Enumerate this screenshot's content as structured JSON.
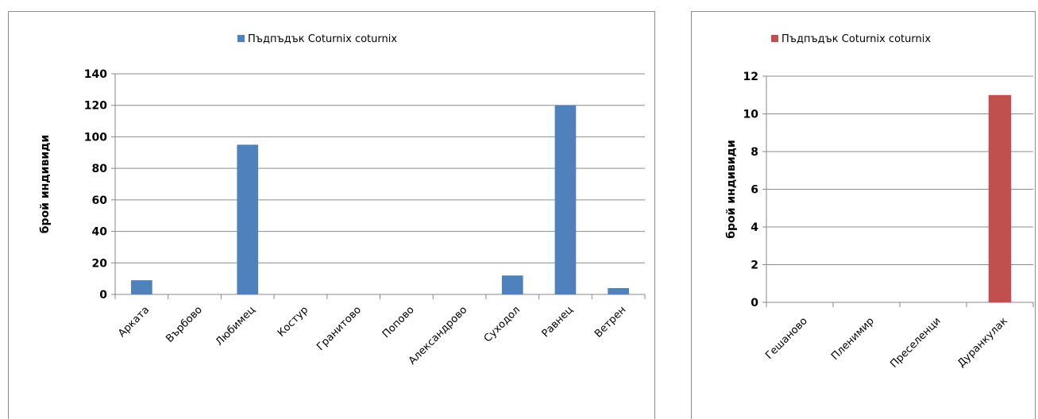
{
  "chart_data": [
    {
      "type": "bar",
      "categories": [
        "Арката",
        "Върбово",
        "Любимец",
        "Костур",
        "Гранитово",
        "Попово",
        "Александрово",
        "Суходол",
        "Равнец",
        "Ветрен"
      ],
      "series": [
        {
          "name": "Пъдпъдък Coturnix coturnix",
          "values": [
            9,
            0,
            95,
            0,
            0,
            0,
            0,
            12,
            120,
            4
          ]
        }
      ],
      "ylabel": "брой индивиди",
      "ylim": [
        0,
        140
      ],
      "yticks": [
        0,
        20,
        40,
        60,
        80,
        100,
        120,
        140
      ],
      "grid": true,
      "legend": "top-center",
      "color": "#4f81bd"
    },
    {
      "type": "bar",
      "categories": [
        "Гешаново",
        "Пленимир",
        "Преселенци",
        "Дуранкулак"
      ],
      "series": [
        {
          "name": "Пъдпъдък Coturnix coturnix",
          "values": [
            0,
            0,
            0,
            11
          ]
        }
      ],
      "ylabel": "брой индивиди",
      "ylim": [
        0,
        12
      ],
      "yticks": [
        0,
        2,
        4,
        6,
        8,
        10,
        12
      ],
      "grid": true,
      "legend": "top-center",
      "color": "#c0504d"
    }
  ]
}
